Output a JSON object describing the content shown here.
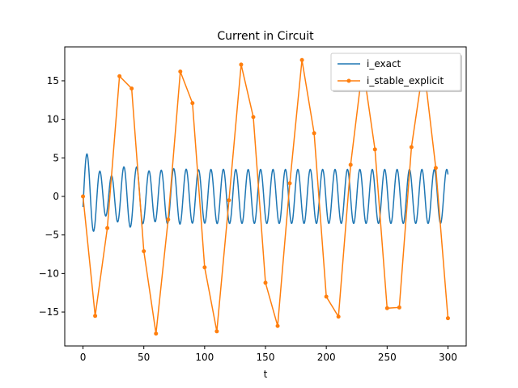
{
  "chart_data": {
    "type": "line",
    "title": "Current in Circuit",
    "xlabel": "t",
    "ylabel": "",
    "xlim": [
      -15,
      315
    ],
    "ylim": [
      -19.4,
      19.4
    ],
    "xticks": [
      0,
      50,
      100,
      150,
      200,
      250,
      300
    ],
    "yticks": [
      -15,
      -10,
      -5,
      0,
      5,
      10,
      15
    ],
    "xtick_labels": [
      "0",
      "50",
      "100",
      "150",
      "200",
      "250",
      "300"
    ],
    "ytick_labels": [
      "−15",
      "−10",
      "−5",
      "0",
      "5",
      "10",
      "15"
    ],
    "grid": false,
    "legend": "top-right",
    "series": [
      {
        "name": "i_exact",
        "color": "#1f77b4",
        "marker": "none",
        "params": {
          "x_start": 0,
          "x_end": 300,
          "steady_amplitude": 3.5,
          "transient_amplitude": 2.3,
          "decay_time": 25,
          "period": 10.2,
          "damped_period": 14.0,
          "phase_offset": -0.4
        }
      },
      {
        "name": "i_stable_explicit",
        "color": "#ff7f0e",
        "marker": "circle",
        "x": [
          0,
          10,
          20,
          30,
          40,
          50,
          60,
          70,
          80,
          90,
          100,
          110,
          120,
          130,
          140,
          150,
          160,
          170,
          180,
          190,
          200,
          210,
          220,
          230,
          240,
          250,
          260,
          270,
          280,
          290,
          300
        ],
        "y": [
          0,
          -15.5,
          -4.1,
          15.6,
          14.0,
          -7.1,
          -17.8,
          -3.0,
          16.2,
          12.1,
          -9.2,
          -17.5,
          -0.5,
          17.1,
          10.3,
          -11.2,
          -16.8,
          1.7,
          17.7,
          8.2,
          -13.0,
          -15.6,
          4.1,
          17.0,
          6.1,
          -14.5,
          -14.4,
          6.4,
          17.1,
          3.7,
          -15.8
        ]
      }
    ]
  }
}
